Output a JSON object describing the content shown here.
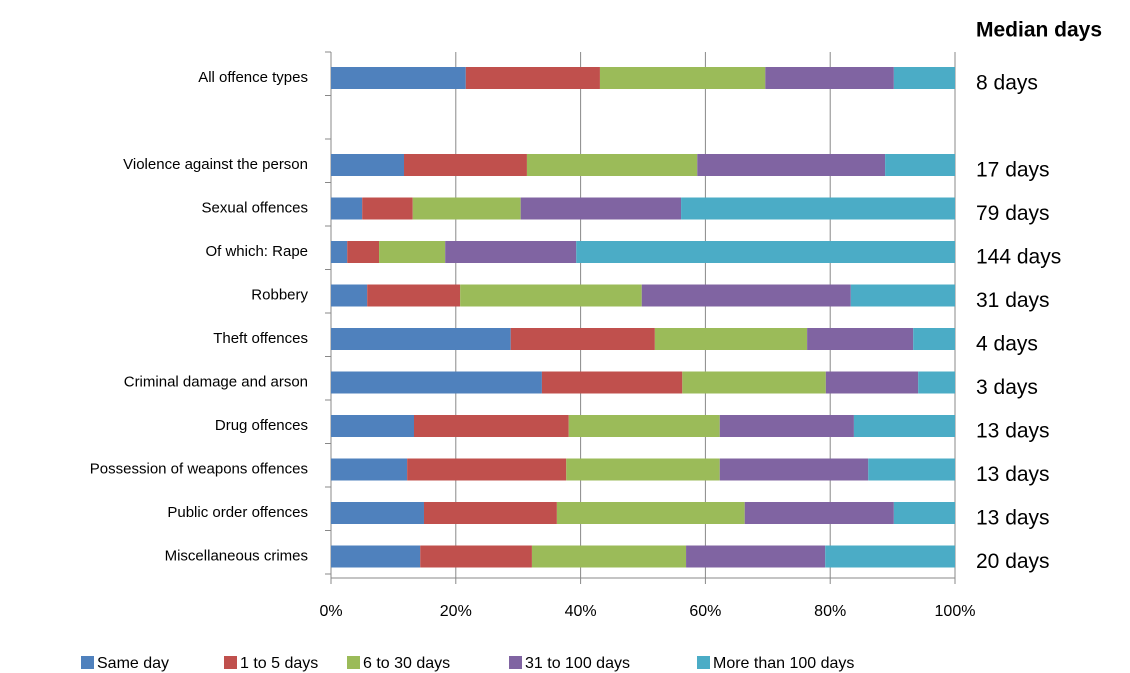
{
  "chart_data": {
    "type": "stacked-barh",
    "categories": [
      "All offence types",
      null,
      "Violence against the person",
      "Sexual offences",
      "Of which: Rape",
      "Robbery",
      "Theft offences",
      "Criminal damage and arson",
      "Drug offences",
      "Possession of weapons offences",
      "Public order offences",
      "Miscellaneous crimes"
    ],
    "series": [
      {
        "name": "Same day",
        "color": "#4f81bd",
        "values": [
          21.6,
          null,
          11.7,
          5.0,
          2.6,
          5.8,
          28.8,
          33.8,
          13.3,
          12.2,
          14.9,
          14.3
        ]
      },
      {
        "name": "1 to 5 days",
        "color": "#c0504d",
        "values": [
          21.5,
          null,
          19.7,
          8.1,
          5.1,
          14.9,
          23.1,
          22.5,
          24.8,
          25.5,
          21.3,
          17.9
        ]
      },
      {
        "name": "6 to 30 days",
        "color": "#9bbb59",
        "values": [
          26.5,
          null,
          27.3,
          17.3,
          10.6,
          29.1,
          24.4,
          23.0,
          24.2,
          24.6,
          30.1,
          24.7
        ]
      },
      {
        "name": "31 to 100 days",
        "color": "#8064a2",
        "values": [
          20.6,
          null,
          30.1,
          25.7,
          21.0,
          33.5,
          17.0,
          14.8,
          21.5,
          23.8,
          23.9,
          22.3
        ]
      },
      {
        "name": "More than 100 days",
        "color": "#4bacc6",
        "values": [
          9.8,
          null,
          11.2,
          43.9,
          60.7,
          16.7,
          6.7,
          5.9,
          16.2,
          13.9,
          9.8,
          20.8
        ]
      }
    ],
    "xlim": [
      0,
      100
    ],
    "xticks": [
      {
        "value": 0,
        "label": "0%"
      },
      {
        "value": 20,
        "label": "20%"
      },
      {
        "value": 40,
        "label": "40%"
      },
      {
        "value": 60,
        "label": "60%"
      },
      {
        "value": 80,
        "label": "80%"
      },
      {
        "value": 100,
        "label": "100%"
      }
    ],
    "grid": true,
    "median_days_title": "Median days",
    "median_days": [
      "8 days",
      null,
      "17 days",
      "79 days",
      "144 days",
      "31 days",
      "4 days",
      "3 days",
      "13 days",
      "13 days",
      "13 days",
      "20 days"
    ],
    "legend": "bottom"
  }
}
